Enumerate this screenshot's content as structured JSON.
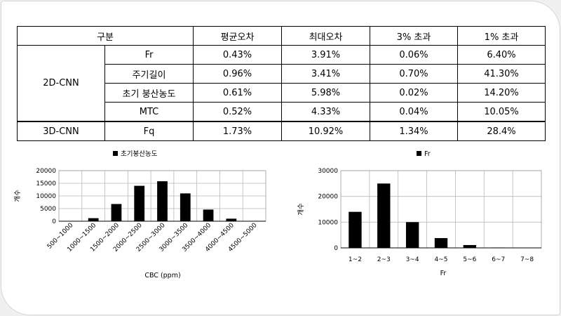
{
  "table": {
    "headers": [
      "구분",
      "평균오차",
      "최대오차",
      "3% 초과",
      "1% 초과"
    ],
    "groups": [
      {
        "name": "2D-CNN",
        "rows": [
          {
            "label": "Fr",
            "cells": [
              "0.43%",
              "3.91%",
              "0.06%",
              "6.40%"
            ]
          },
          {
            "label": "주기길이",
            "cells": [
              "0.96%",
              "3.41%",
              "0.70%",
              "41.30%"
            ]
          },
          {
            "label": "초기 붕산농도",
            "cells": [
              "0.61%",
              "5.98%",
              "0.02%",
              "14.20%"
            ]
          },
          {
            "label": "MTC",
            "cells": [
              "0.52%",
              "4.33%",
              "0.04%",
              "10.05%"
            ]
          }
        ]
      },
      {
        "name": "3D-CNN",
        "rows": [
          {
            "label": "Fq",
            "cells": [
              "1.73%",
              "10.92%",
              "1.34%",
              "28.4%"
            ]
          }
        ]
      }
    ]
  },
  "chart_data": [
    {
      "type": "bar",
      "title": "",
      "legend": "초기붕산농도",
      "legend_position": "top",
      "xlabel": "CBC (ppm)",
      "ylabel": "개수",
      "categories": [
        "500~1000",
        "1000~1500",
        "1500~2000",
        "2000~2500",
        "2500~3000",
        "3000~3500",
        "3500~4000",
        "4000~4500",
        "4500~5000"
      ],
      "values": [
        0,
        1200,
        6800,
        14000,
        15800,
        11000,
        4600,
        1000,
        0
      ],
      "ylim": [
        0,
        20000
      ],
      "yticks": [
        "0",
        "5000",
        "10000",
        "15000",
        "20000"
      ],
      "grid": true,
      "bar_color": "#000000"
    },
    {
      "type": "bar",
      "title": "",
      "legend": "Fr",
      "legend_position": "top",
      "xlabel": "Fr",
      "ylabel": "개수",
      "categories": [
        "1~2",
        "2~3",
        "3~4",
        "4~5",
        "5~6",
        "6~7",
        "7~8"
      ],
      "values": [
        14000,
        25000,
        10000,
        3800,
        1100,
        150,
        0
      ],
      "ylim": [
        0,
        30000
      ],
      "yticks": [
        "0",
        "10000",
        "20000",
        "30000"
      ],
      "grid": true,
      "bar_color": "#000000"
    }
  ]
}
